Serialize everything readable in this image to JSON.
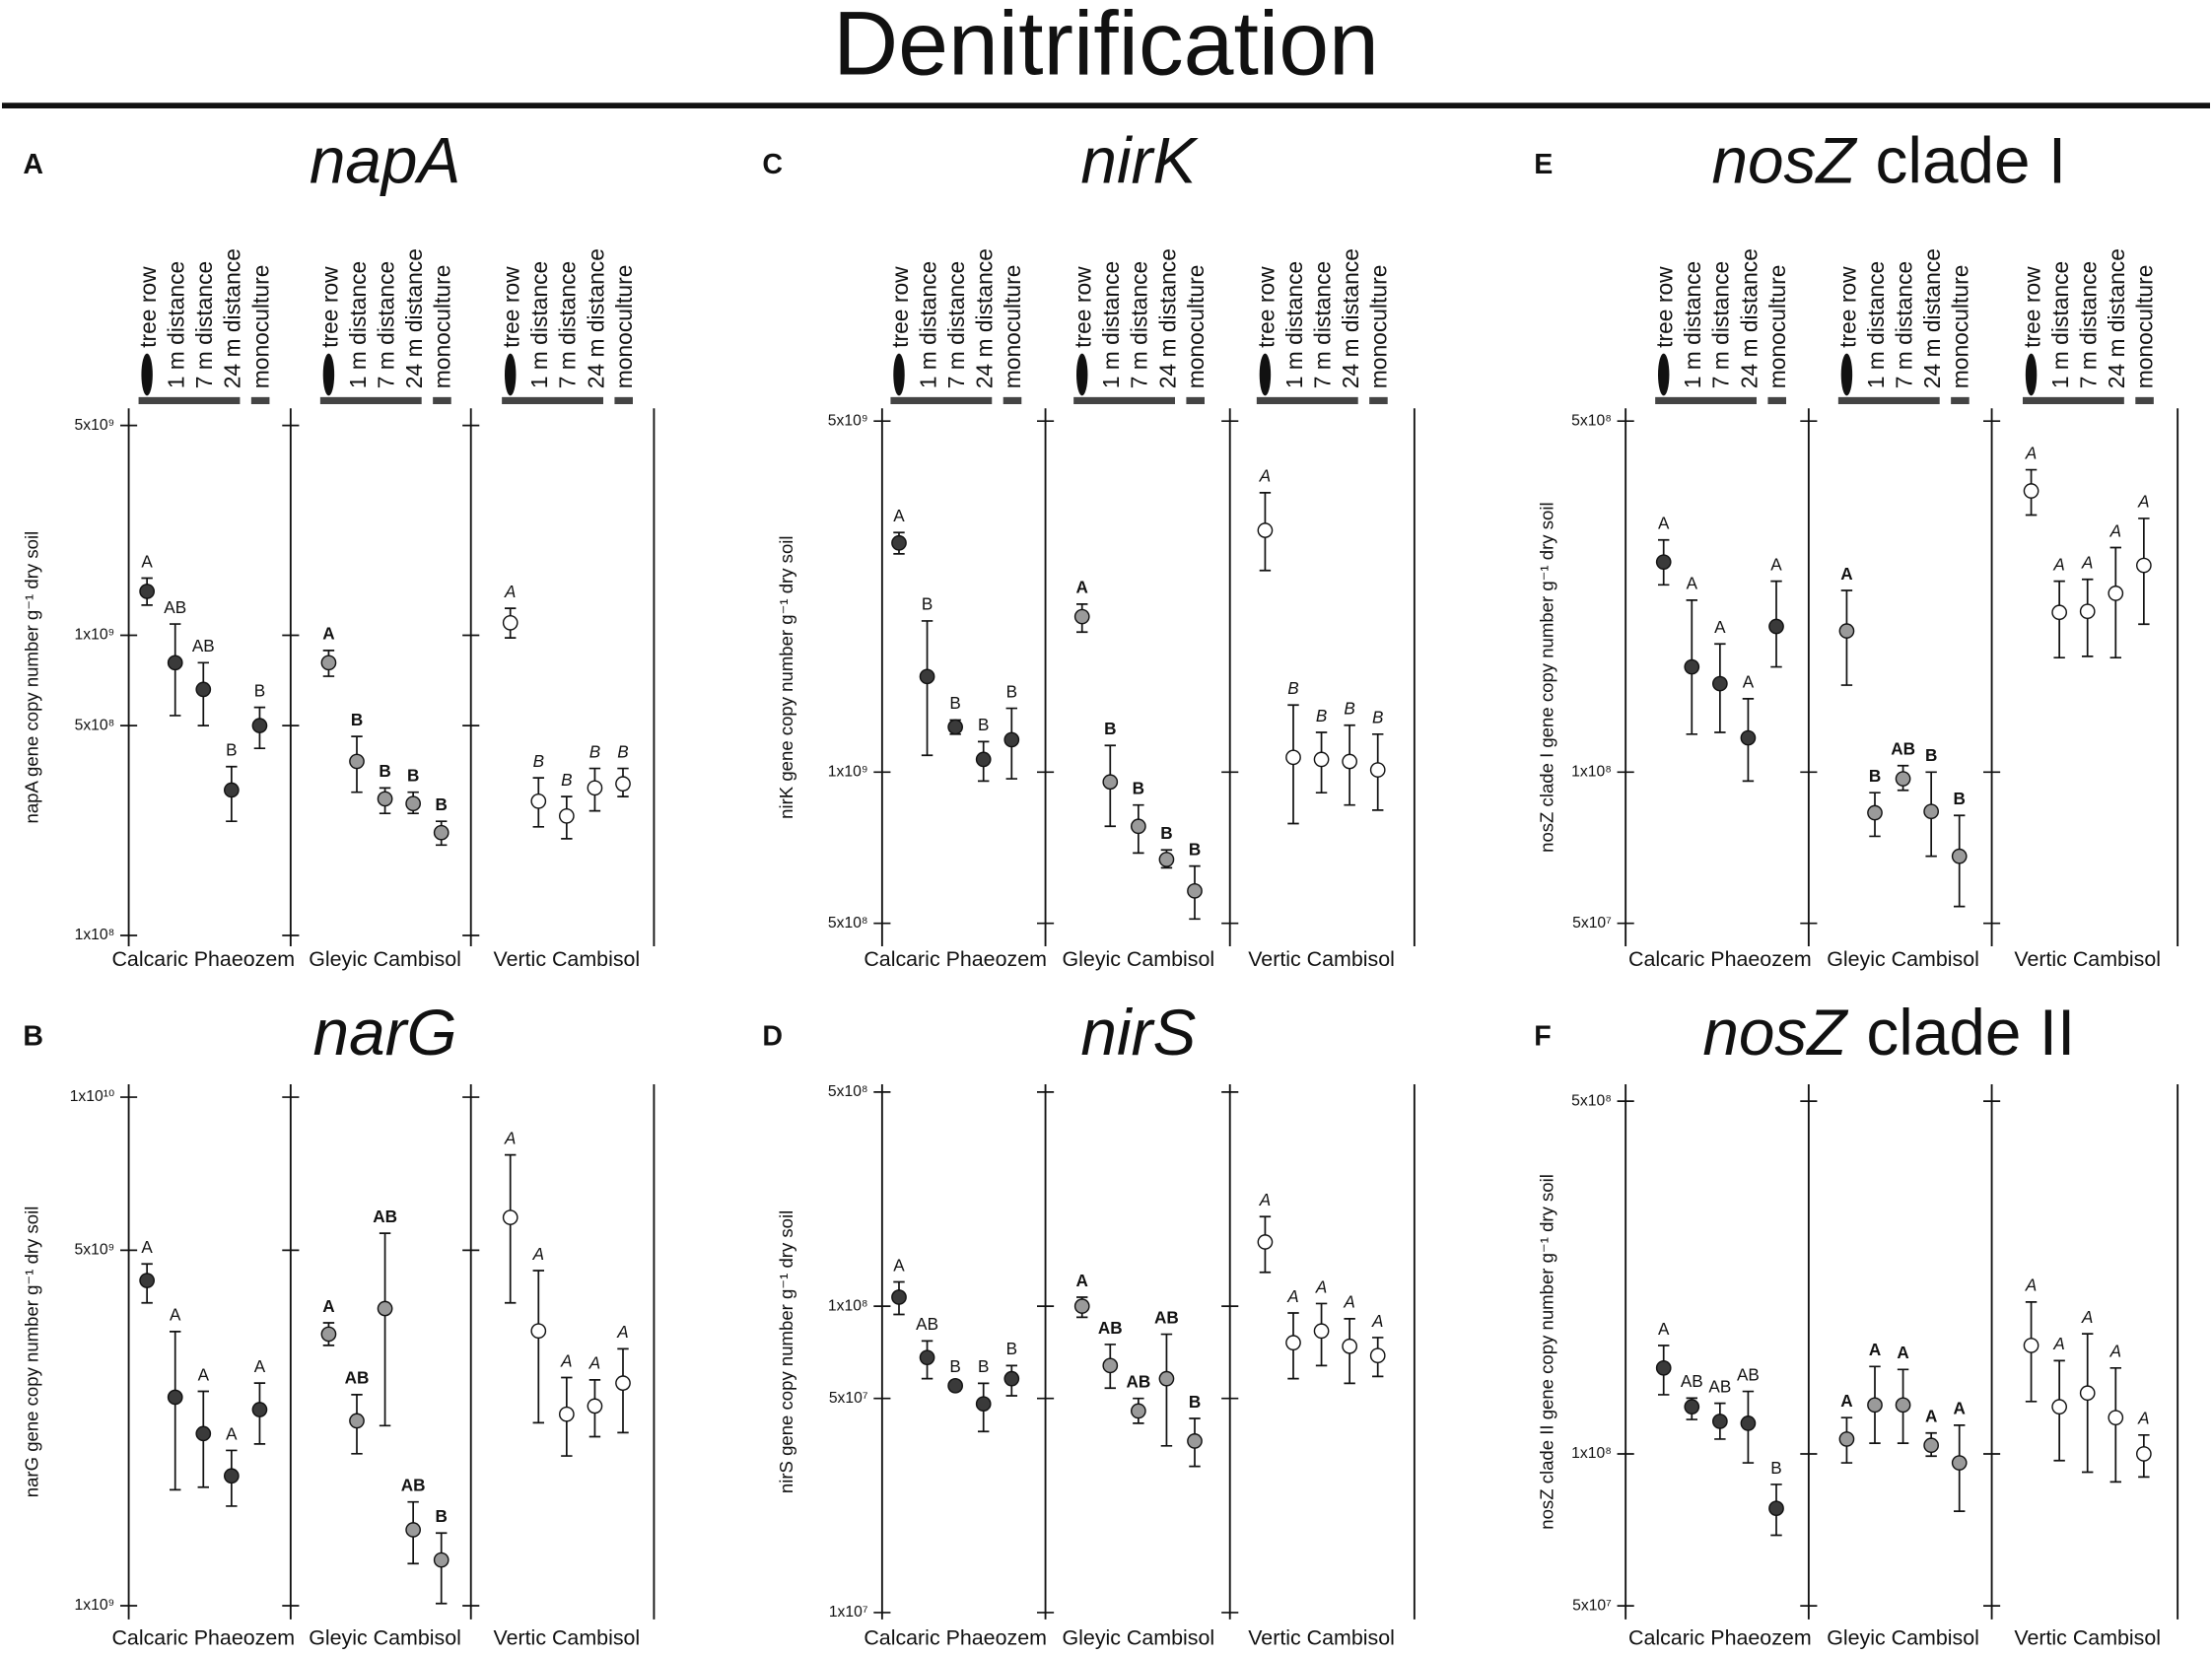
{
  "title": "Denitrification",
  "treatments": [
    "tree row",
    "1 m distance",
    "7 m distance",
    "24 m distance",
    "monoculture"
  ],
  "chart_data": [
    {
      "type": "errorbar",
      "panel": "A",
      "title": "napA",
      "ylabel": "napA gene copy number g⁻¹ dry soil",
      "log_scale": true,
      "ylim": [
        92000000.0,
        5700000000.0
      ],
      "yticks": [
        {
          "value": 100000000.0,
          "label": "1x10⁸"
        },
        {
          "value": 500000000.0,
          "label": "5x10⁸"
        },
        {
          "value": 1000000000.0,
          "label": "1x10⁹"
        },
        {
          "value": 5000000000.0,
          "label": "5x10⁹"
        }
      ],
      "series": [
        {
          "name": "Calcaric Phaeozem",
          "color": "#3a3a3a",
          "letter_style": "normal",
          "values": [
            1400000000.0,
            810000000.0,
            660000000.0,
            305000000.0,
            500000000.0
          ],
          "lower": [
            1260000000.0,
            540000000.0,
            500000000.0,
            240000000.0,
            420000000.0
          ],
          "upper": [
            1550000000.0,
            1090000000.0,
            810000000.0,
            365000000.0,
            575000000.0
          ],
          "letters": [
            "A",
            "AB",
            "AB",
            "B",
            "B"
          ]
        },
        {
          "name": "Gleyic Cambisol",
          "color": "#9a9a9a",
          "letter_style": "bold",
          "values": [
            810000000.0,
            380000000.0,
            285000000.0,
            275000000.0,
            220000000.0
          ],
          "lower": [
            730000000.0,
            300000000.0,
            255000000.0,
            255000000.0,
            200000000.0
          ],
          "upper": [
            890000000.0,
            460000000.0,
            310000000.0,
            300000000.0,
            240000000.0
          ],
          "letters": [
            "A",
            "B",
            "B",
            "B",
            "B"
          ]
        },
        {
          "name": "Vertic Cambisol",
          "color": "#ffffff",
          "letter_style": "italic",
          "values": [
            1100000000.0,
            280000000.0,
            250000000.0,
            310000000.0,
            320000000.0
          ],
          "lower": [
            980000000.0,
            230000000.0,
            210000000.0,
            260000000.0,
            290000000.0
          ],
          "upper": [
            1230000000.0,
            335000000.0,
            290000000.0,
            360000000.0,
            360000000.0
          ],
          "letters": [
            "A",
            "B",
            "B",
            "B",
            "B"
          ]
        }
      ]
    },
    {
      "type": "errorbar",
      "panel": "B",
      "title": "narG",
      "ylabel": "narG gene copy number g⁻¹ dry soil",
      "log_scale": true,
      "ylim": [
        940000000.0,
        10600000000.0
      ],
      "yticks": [
        {
          "value": 1000000000.0,
          "label": "1x10⁹"
        },
        {
          "value": 5000000000.0,
          "label": "5x10⁹"
        },
        {
          "value": 10000000000.0,
          "label": "1x10¹⁰"
        }
      ],
      "series": [
        {
          "name": "Calcaric Phaeozem",
          "color": "#3a3a3a",
          "letter_style": "normal",
          "values": [
            4360000000.0,
            2570000000.0,
            2180000000.0,
            1800000000.0,
            2430000000.0
          ],
          "lower": [
            3940000000.0,
            1690000000.0,
            1710000000.0,
            1570000000.0,
            2080000000.0
          ],
          "upper": [
            4700000000.0,
            3460000000.0,
            2640000000.0,
            2020000000.0,
            2740000000.0
          ],
          "letters": [
            "A",
            "A",
            "A",
            "A",
            "A"
          ]
        },
        {
          "name": "Gleyic Cambisol",
          "color": "#9a9a9a",
          "letter_style": "bold",
          "values": [
            3420000000.0,
            2310000000.0,
            3840000000.0,
            1410000000.0,
            1230000000.0
          ],
          "lower": [
            3250000000.0,
            1990000000.0,
            2260000000.0,
            1210000000.0,
            1010000000.0
          ],
          "upper": [
            3600000000.0,
            2600000000.0,
            5400000000.0,
            1600000000.0,
            1390000000.0
          ],
          "letters": [
            "A",
            "AB",
            "AB",
            "AB",
            "B"
          ]
        },
        {
          "name": "Vertic Cambisol",
          "color": "#ffffff",
          "letter_style": "italic",
          "values": [
            5800000000.0,
            3470000000.0,
            2380000000.0,
            2470000000.0,
            2740000000.0
          ],
          "lower": [
            3940000000.0,
            2290000000.0,
            1970000000.0,
            2150000000.0,
            2190000000.0
          ],
          "upper": [
            7700000000.0,
            4560000000.0,
            2810000000.0,
            2780000000.0,
            3200000000.0
          ],
          "letters": [
            "A",
            "A",
            "A",
            "A",
            "A"
          ]
        }
      ]
    },
    {
      "type": "errorbar",
      "panel": "C",
      "title": "nirK",
      "ylabel": "nirK gene copy number g⁻¹ dry soil",
      "log_scale": true,
      "ylim": [
        450000000.0,
        5300000000.0
      ],
      "yticks": [
        {
          "value": 500000000.0,
          "label": "5x10⁸"
        },
        {
          "value": 1000000000.0,
          "label": "1x10⁹"
        },
        {
          "value": 5000000000.0,
          "label": "5x10⁹"
        }
      ],
      "series": [
        {
          "name": "Calcaric Phaeozem",
          "color": "#3a3a3a",
          "letter_style": "normal",
          "values": [
            2860000000.0,
            1550000000.0,
            1230000000.0,
            1060000000.0,
            1160000000.0
          ],
          "lower": [
            2720000000.0,
            1080000000.0,
            1190000000.0,
            960000000.0,
            970000000.0
          ],
          "upper": [
            3000000000.0,
            2000000000.0,
            1270000000.0,
            1150000000.0,
            1340000000.0
          ],
          "letters": [
            "A",
            "B",
            "B",
            "B",
            "B"
          ]
        },
        {
          "name": "Gleyic Cambisol",
          "color": "#9a9a9a",
          "letter_style": "bold",
          "values": [
            2040000000.0,
            956000000.0,
            780000000.0,
            670000000.0,
            580000000.0
          ],
          "lower": [
            1900000000.0,
            780000000.0,
            690000000.0,
            645000000.0,
            510000000.0
          ],
          "upper": [
            2160000000.0,
            1130000000.0,
            860000000.0,
            700000000.0,
            650000000.0
          ],
          "letters": [
            "A",
            "B",
            "B",
            "B",
            "B"
          ]
        },
        {
          "name": "Vertic Cambisol",
          "color": "#ffffff",
          "letter_style": "italic",
          "values": [
            3030000000.0,
            1070000000.0,
            1060000000.0,
            1050000000.0,
            1010000000.0
          ],
          "lower": [
            2520000000.0,
            790000000.0,
            910000000.0,
            860000000.0,
            840000000.0
          ],
          "upper": [
            3600000000.0,
            1360000000.0,
            1200000000.0,
            1240000000.0,
            1190000000.0
          ],
          "letters": [
            "A",
            "B",
            "B",
            "B",
            "B"
          ]
        }
      ]
    },
    {
      "type": "errorbar",
      "panel": "D",
      "title": "nirS",
      "ylabel": "nirS gene copy number g⁻¹ dry soil",
      "log_scale": true,
      "ylim": [
        9500000.0,
        530000000.0
      ],
      "yticks": [
        {
          "value": 10000000.0,
          "label": "1x10⁷"
        },
        {
          "value": 50000000.0,
          "label": "5x10⁷"
        },
        {
          "value": 100000000.0,
          "label": "1x10⁸"
        },
        {
          "value": 500000000.0,
          "label": "5x10⁸"
        }
      ],
      "series": [
        {
          "name": "Calcaric Phaeozem",
          "color": "#3a3a3a",
          "letter_style": "normal",
          "values": [
            107000000.0,
            68000000.0,
            55000000.0,
            48000000.0,
            58000000.0
          ],
          "lower": [
            94000000.0,
            58000000.0,
            53000000.0,
            39000000.0,
            51000000.0
          ],
          "upper": [
            120000000.0,
            77000000.0,
            56000000.0,
            56000000.0,
            64000000.0
          ],
          "letters": [
            "A",
            "AB",
            "B",
            "B",
            "B"
          ]
        },
        {
          "name": "Gleyic Cambisol",
          "color": "#9a9a9a",
          "letter_style": "bold",
          "values": [
            100000000.0,
            64000000.0,
            45500000.0,
            58000000.0,
            36300000.0
          ],
          "lower": [
            92000000.0,
            54000000.0,
            41500000.0,
            35000000.0,
            30000000.0
          ],
          "upper": [
            107000000.0,
            75000000.0,
            50000000.0,
            81000000.0,
            43000000.0
          ],
          "letters": [
            "A",
            "AB",
            "AB",
            "AB",
            "B"
          ]
        },
        {
          "name": "Vertic Cambisol",
          "color": "#ffffff",
          "letter_style": "italic",
          "values": [
            162000000.0,
            76000000.0,
            83000000.0,
            74000000.0,
            69000000.0
          ],
          "lower": [
            129000000.0,
            58000000.0,
            64000000.0,
            56000000.0,
            59000000.0
          ],
          "upper": [
            196000000.0,
            95000000.0,
            102000000.0,
            91000000.0,
            79000000.0
          ],
          "letters": [
            "A",
            "A",
            "A",
            "A",
            "A"
          ]
        }
      ]
    },
    {
      "type": "errorbar",
      "panel": "E",
      "title": "nosZ",
      "title_suffix": "clade I",
      "ylabel": "nosZ clade I gene copy number g⁻¹ dry soil",
      "log_scale": true,
      "ylim": [
        45000000.0,
        530000000.0
      ],
      "yticks": [
        {
          "value": 50000000.0,
          "label": "5x10⁷"
        },
        {
          "value": 100000000.0,
          "label": "1x10⁸"
        },
        {
          "value": 500000000.0,
          "label": "5x10⁸"
        }
      ],
      "series": [
        {
          "name": "Calcaric Phaeozem",
          "color": "#3a3a3a",
          "letter_style": "normal",
          "values": [
            262000000.0,
            162000000.0,
            150000000.0,
            117000000.0,
            195000000.0
          ],
          "lower": [
            236000000.0,
            119000000.0,
            120000000.0,
            96000000.0,
            162000000.0
          ],
          "upper": [
            290000000.0,
            220000000.0,
            180000000.0,
            140000000.0,
            240000000.0
          ],
          "letters": [
            "A",
            "A",
            "A",
            "A",
            "A"
          ]
        },
        {
          "name": "Gleyic Cambisol",
          "color": "#9a9a9a",
          "letter_style": "bold",
          "values": [
            191000000.0,
            83000000.0,
            97000000.0,
            83500000.0,
            68000000.0
          ],
          "lower": [
            149000000.0,
            74500000.0,
            92000000.0,
            68000000.0,
            54000000.0
          ],
          "upper": [
            230000000.0,
            91000000.0,
            103000000.0,
            100000000.0,
            82000000.0
          ],
          "letters": [
            "A",
            "B",
            "AB",
            "B",
            "B"
          ]
        },
        {
          "name": "Vertic Cambisol",
          "color": "#ffffff",
          "letter_style": "italic",
          "values": [
            363000000.0,
            208000000.0,
            209000000.0,
            227000000.0,
            258000000.0
          ],
          "lower": [
            325000000.0,
            169000000.0,
            170000000.0,
            169000000.0,
            197000000.0
          ],
          "upper": [
            400000000.0,
            240000000.0,
            242000000.0,
            280000000.0,
            320000000.0
          ],
          "letters": [
            "A",
            "A",
            "A",
            "A",
            "A"
          ]
        }
      ]
    },
    {
      "type": "errorbar",
      "panel": "F",
      "title": "nosZ",
      "title_suffix": "clade II",
      "ylabel": "nosZ clade II gene copy number g⁻¹ dry soil",
      "log_scale": true,
      "ylim": [
        47000000.0,
        540000000.0
      ],
      "yticks": [
        {
          "value": 50000000.0,
          "label": "5x10⁷"
        },
        {
          "value": 100000000.0,
          "label": "1x10⁸"
        },
        {
          "value": 500000000.0,
          "label": "5x10⁸"
        }
      ],
      "series": [
        {
          "name": "Calcaric Phaeozem",
          "color": "#3a3a3a",
          "letter_style": "normal",
          "values": [
            148000000.0,
            124000000.0,
            116000000.0,
            115000000.0,
            78000000.0
          ],
          "lower": [
            131000000.0,
            117000000.0,
            107000000.0,
            96000000.0,
            69000000.0
          ],
          "upper": [
            164000000.0,
            129000000.0,
            126000000.0,
            133000000.0,
            87000000.0
          ],
          "letters": [
            "A",
            "AB",
            "AB",
            "AB",
            "B"
          ]
        },
        {
          "name": "Gleyic Cambisol",
          "color": "#9a9a9a",
          "letter_style": "bold",
          "values": [
            107000000.0,
            125000000.0,
            125000000.0,
            104000000.0,
            96000000.0
          ],
          "lower": [
            96000000.0,
            105000000.0,
            105000000.0,
            99000000.0,
            77000000.0
          ],
          "upper": [
            118000000.0,
            149000000.0,
            147000000.0,
            110000000.0,
            114000000.0
          ],
          "letters": [
            "A",
            "A",
            "A",
            "A",
            "A"
          ]
        },
        {
          "name": "Vertic Cambisol",
          "color": "#ffffff",
          "letter_style": "italic",
          "values": [
            164000000.0,
            124000000.0,
            132000000.0,
            118000000.0,
            100000000.0
          ],
          "lower": [
            127000000.0,
            97000000.0,
            92000000.0,
            88000000.0,
            90000000.0
          ],
          "upper": [
            200000000.0,
            153000000.0,
            173000000.0,
            148000000.0,
            109000000.0
          ],
          "letters": [
            "A",
            "A",
            "A",
            "A",
            "A"
          ]
        }
      ]
    }
  ]
}
